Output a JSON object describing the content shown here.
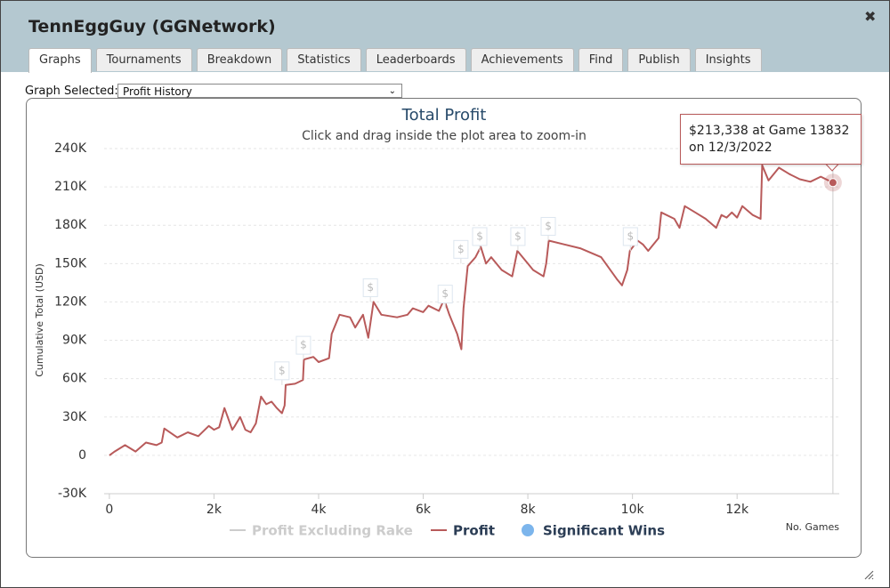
{
  "window": {
    "title": "TennEggGuy (GGNetwork)",
    "tabs": [
      "Graphs",
      "Tournaments",
      "Breakdown",
      "Statistics",
      "Leaderboards",
      "Achievements",
      "Find",
      "Publish",
      "Insights"
    ],
    "active_tab": 0,
    "graph_selector": {
      "label": "Graph Selected:",
      "value": "Profit History"
    }
  },
  "chart_data": {
    "type": "line",
    "title": "Total Profit",
    "subtitle": "Click and drag inside the plot area to zoom-in",
    "y_label": "Cumulative Total (USD)",
    "x_label": "No. Games",
    "xlim": [
      -100,
      14000
    ],
    "xticks": [
      0,
      {
        "value": 2000,
        "label": "2k"
      },
      {
        "value": 4000,
        "label": "4k"
      },
      {
        "value": 6000,
        "label": "6k"
      },
      {
        "value": 8000,
        "label": "8k"
      },
      {
        "value": 10000,
        "label": "10k"
      },
      {
        "value": 12000,
        "label": "12k"
      }
    ],
    "ylim": [
      -30000,
      245000
    ],
    "yticks": [
      {
        "value": -30000,
        "label": "-30K"
      },
      0,
      {
        "value": 30000,
        "label": "30K"
      },
      {
        "value": 60000,
        "label": "60K"
      },
      {
        "value": 90000,
        "label": "90K"
      },
      {
        "value": 120000,
        "label": "120K"
      },
      {
        "value": 150000,
        "label": "150K"
      },
      {
        "value": 180000,
        "label": "180K"
      },
      {
        "value": 210000,
        "label": "210K"
      },
      {
        "value": 240000,
        "label": "240K"
      }
    ],
    "grid": true,
    "series": [
      {
        "name": "Profit Excluding Rake",
        "color": "#cccccc",
        "visible": false
      },
      {
        "name": "Profit",
        "color": "#b85a5a",
        "visible": true,
        "x": [
          0,
          100,
          300,
          500,
          700,
          900,
          1000,
          1050,
          1300,
          1500,
          1700,
          1900,
          2000,
          2100,
          2200,
          2350,
          2400,
          2500,
          2600,
          2700,
          2800,
          2900,
          3000,
          3100,
          3200,
          3300,
          3350,
          3370,
          3550,
          3600,
          3700,
          3720,
          3900,
          4000,
          4200,
          4250,
          4400,
          4600,
          4700,
          4850,
          4950,
          5050,
          5200,
          5500,
          5700,
          5800,
          6000,
          6100,
          6300,
          6400,
          6500,
          6650,
          6730,
          6770,
          6850,
          7000,
          7100,
          7200,
          7300,
          7500,
          7700,
          7800,
          8000,
          8100,
          8300,
          8350,
          8400,
          8700,
          9000,
          9400,
          9700,
          9800,
          9900,
          9950,
          10100,
          10200,
          10300,
          10500,
          10550,
          10800,
          10900,
          11000,
          11200,
          11400,
          11600,
          11700,
          11800,
          11900,
          12000,
          12100,
          12300,
          12450,
          12480,
          12600,
          12800,
          13000,
          13200,
          13400,
          13600,
          13832
        ],
        "values": [
          0,
          3000,
          8000,
          3000,
          10000,
          8000,
          10000,
          21000,
          14000,
          18000,
          15000,
          23000,
          20000,
          22000,
          37000,
          20000,
          23000,
          30000,
          20000,
          18000,
          25000,
          46000,
          40000,
          42000,
          37000,
          33000,
          39000,
          55000,
          56000,
          57000,
          59000,
          75000,
          77000,
          73000,
          76000,
          95000,
          110000,
          108000,
          100000,
          110000,
          92000,
          120000,
          110000,
          108000,
          110000,
          115000,
          112000,
          117000,
          113000,
          122000,
          110000,
          95000,
          83000,
          115000,
          148000,
          155000,
          163000,
          150000,
          155000,
          145000,
          140000,
          160000,
          150000,
          145000,
          140000,
          150000,
          168000,
          165000,
          162000,
          155000,
          138000,
          133000,
          145000,
          160000,
          168000,
          165000,
          160000,
          170000,
          190000,
          185000,
          178000,
          195000,
          190000,
          185000,
          178000,
          188000,
          186000,
          190000,
          186000,
          195000,
          188000,
          185000,
          227000,
          215000,
          225000,
          220000,
          216000,
          214000,
          218000,
          213338
        ]
      },
      {
        "name": "Significant Wins",
        "color": "#7cb5ec",
        "visible": true,
        "marker_label": "$",
        "x": [
          3300,
          3710,
          4990,
          6420,
          6720,
          7080,
          7810,
          8390,
          9960
        ],
        "values": [
          55000,
          75000,
          120000,
          115000,
          150000,
          160000,
          160000,
          168000,
          160000
        ]
      }
    ],
    "tooltip": "$213,338 at Game 13832 on 12/3/2022"
  }
}
